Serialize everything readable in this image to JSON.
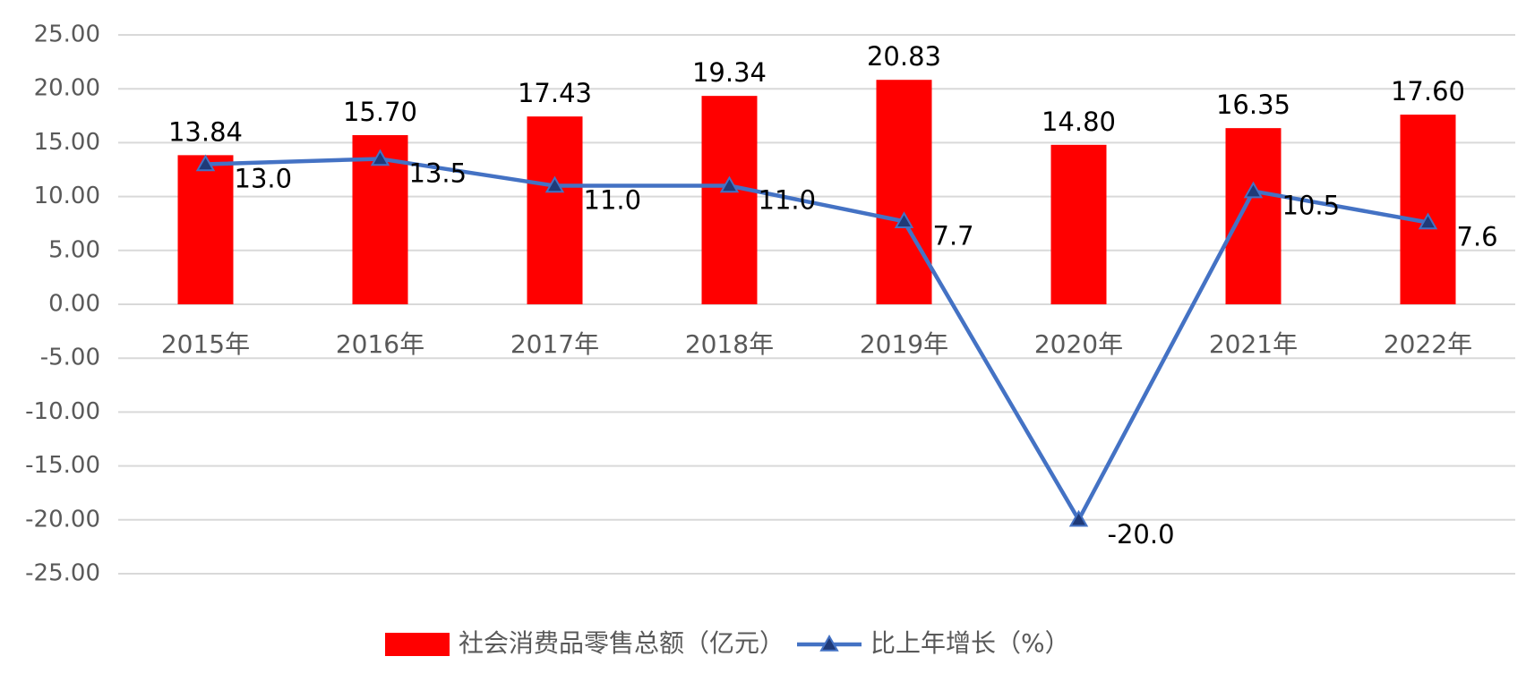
{
  "chart_data": {
    "type": "bar",
    "categories": [
      "2015年",
      "2016年",
      "2017年",
      "2018年",
      "2019年",
      "2020年",
      "2021年",
      "2022年"
    ],
    "series": [
      {
        "name": "社会消费品零售总额（亿元）",
        "type": "bar",
        "color": "#ff0000",
        "values": [
          13.84,
          15.7,
          17.43,
          19.34,
          20.83,
          14.8,
          16.35,
          17.6
        ],
        "value_labels": [
          "13.84",
          "15.70",
          "17.43",
          "19.34",
          "20.83",
          "14.80",
          "16.35",
          "17.60"
        ]
      },
      {
        "name": "比上年增长（%）",
        "type": "line",
        "color": "#4472c4",
        "marker_color": "#1f3a78",
        "values": [
          13,
          13.5,
          11,
          11,
          7.7,
          -20,
          10.5,
          7.6
        ],
        "value_labels": [
          "13.0",
          "13.5",
          "11.0",
          "11.0",
          "7.7",
          "-20.0",
          "10.5",
          "7.6"
        ]
      }
    ],
    "ylim": [
      -25,
      25
    ],
    "yticks": [
      {
        "value": -25,
        "label": "-25.00"
      },
      {
        "value": -20,
        "label": "-20.00"
      },
      {
        "value": -15,
        "label": "-15.00"
      },
      {
        "value": -10,
        "label": "-10.00"
      },
      {
        "value": -5,
        "label": "-5.00"
      },
      {
        "value": 0,
        "label": "0.00"
      },
      {
        "value": 5,
        "label": "5.00"
      },
      {
        "value": 10,
        "label": "10.00"
      },
      {
        "value": 15,
        "label": "15.00"
      },
      {
        "value": 20,
        "label": "20.00"
      },
      {
        "value": 25,
        "label": "25.00"
      }
    ],
    "grid": true,
    "legend": "bottom"
  }
}
